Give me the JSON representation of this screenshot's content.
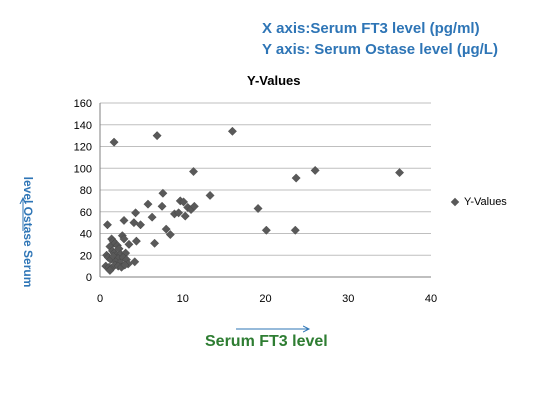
{
  "header": {
    "x_axis_note": "X axis:Serum FT3 level (pg/ml)",
    "y_axis_note": "Y axis: Serum Ostase level (µg/L)"
  },
  "chart_data": {
    "type": "scatter",
    "title": "Y-Values",
    "xlabel": "Serum FT3 level",
    "ylabel": "level   Ostase Serum",
    "xlim": [
      0,
      40
    ],
    "ylim": [
      0,
      160
    ],
    "x_ticks": [
      0,
      10,
      20,
      30,
      40
    ],
    "y_ticks": [
      0,
      20,
      40,
      60,
      80,
      100,
      120,
      140,
      160
    ],
    "gridlines": "horizontal",
    "legend_position": "right",
    "colors": {
      "marker": "#595959",
      "grid": "#bfbfbf",
      "axis": "#7f7f7f",
      "arrow": "#2e75b6"
    },
    "series": [
      {
        "name": "Y-Values",
        "points": [
          [
            1.7,
            124
          ],
          [
            6.9,
            130
          ],
          [
            16,
            134
          ],
          [
            11.3,
            97
          ],
          [
            26,
            98
          ],
          [
            36.2,
            96
          ],
          [
            23.7,
            91
          ],
          [
            7.6,
            77
          ],
          [
            13.3,
            75
          ],
          [
            5.8,
            67
          ],
          [
            7.5,
            65
          ],
          [
            9.7,
            70
          ],
          [
            10.1,
            69
          ],
          [
            10.6,
            64
          ],
          [
            11,
            62
          ],
          [
            11.4,
            65
          ],
          [
            19.1,
            63
          ],
          [
            4.3,
            59
          ],
          [
            6.3,
            55
          ],
          [
            9,
            58
          ],
          [
            9.5,
            59
          ],
          [
            10.3,
            56
          ],
          [
            0.9,
            48
          ],
          [
            2.9,
            52
          ],
          [
            4.1,
            50
          ],
          [
            4.9,
            48
          ],
          [
            8,
            44
          ],
          [
            8.5,
            39
          ],
          [
            20.1,
            43
          ],
          [
            23.6,
            43
          ],
          [
            2.7,
            38
          ],
          [
            2.9,
            35
          ],
          [
            3.5,
            30
          ],
          [
            4.4,
            33
          ],
          [
            6.6,
            31
          ],
          [
            1.4,
            35
          ],
          [
            1.6,
            33
          ],
          [
            1.8,
            31
          ],
          [
            2.1,
            29
          ],
          [
            2.3,
            26
          ],
          [
            1.2,
            28
          ],
          [
            1.5,
            24
          ],
          [
            1.7,
            22
          ],
          [
            2,
            20
          ],
          [
            2.5,
            21
          ],
          [
            3.1,
            22
          ],
          [
            0.8,
            20
          ],
          [
            1,
            18
          ],
          [
            1.3,
            16
          ],
          [
            1.6,
            19
          ],
          [
            2.2,
            17
          ],
          [
            2.8,
            18
          ],
          [
            3.2,
            16
          ],
          [
            3.4,
            12
          ],
          [
            4.2,
            14
          ],
          [
            1.9,
            14
          ],
          [
            2.4,
            13
          ],
          [
            0.7,
            10
          ],
          [
            1.1,
            9
          ],
          [
            1.4,
            8
          ],
          [
            1.8,
            11
          ],
          [
            2.2,
            10
          ],
          [
            2.6,
            9
          ],
          [
            3,
            11
          ],
          [
            1.2,
            6
          ]
        ]
      }
    ]
  }
}
